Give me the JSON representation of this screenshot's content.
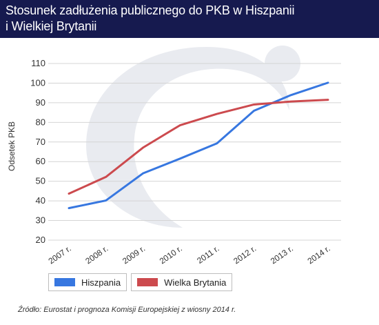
{
  "title_line1": "Stosunek zadłużenia publicznego do PKB w Hiszpanii",
  "title_line2": "i Wielkiej Brytanii",
  "source": "Źródło: Eurostat i prognoza Komisji Europejskiej z wiosny 2014 r.",
  "colors": {
    "header": "#161a4f",
    "Hiszpania": "#3777e0",
    "Wielka Brytania": "#cc4a4e",
    "watermark": "#e9ebf0"
  },
  "chart_data": {
    "type": "line",
    "title": "Stosunek zadłużenia publicznego do PKB w Hiszpanii i Wielkiej Brytanii",
    "xlabel": "",
    "ylabel": "Odsetek PKB",
    "categories": [
      "2007 r.",
      "2008 r.",
      "2009 r.",
      "2010 r.",
      "2011 r.",
      "2012 r.",
      "2013 r.",
      "2014 r."
    ],
    "yticks": [
      20,
      30,
      40,
      50,
      60,
      70,
      80,
      90,
      100,
      110
    ],
    "ylim": [
      20,
      110
    ],
    "grid": true,
    "legend": "bottom-left",
    "series": [
      {
        "name": "Hiszpania",
        "values": [
          36.3,
          40.2,
          54.0,
          61.5,
          69.3,
          85.9,
          93.9,
          100.2
        ]
      },
      {
        "name": "Wielka Brytania",
        "values": [
          43.7,
          52.2,
          67.1,
          78.5,
          84.3,
          89.1,
          90.6,
          91.5
        ]
      }
    ]
  }
}
